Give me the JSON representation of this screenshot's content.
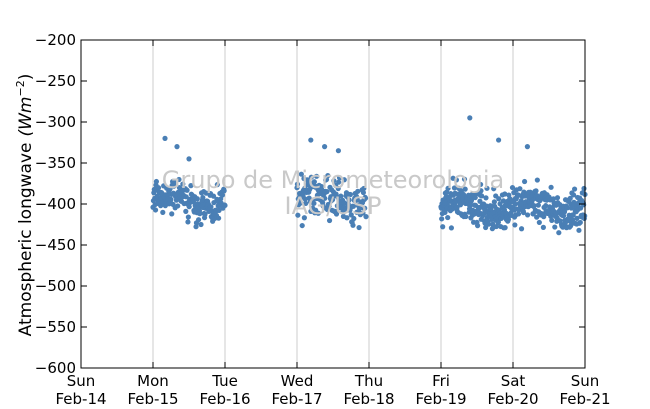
{
  "chart_data": {
    "type": "scatter",
    "ylabel": "Atmospheric longwave",
    "ylabel_unit_base": "(Wm",
    "ylabel_unit_exp": "−2",
    "ylabel_unit_close": ")",
    "ylim": [
      -600,
      -200
    ],
    "yticks": [
      -200,
      -250,
      -300,
      -350,
      -400,
      -450,
      -500,
      -550,
      -600
    ],
    "ytick_labels": [
      "−200",
      "−250",
      "−300",
      "−350",
      "−400",
      "−450",
      "−500",
      "−550",
      "−600"
    ],
    "xlim": [
      "2016-02-14",
      "2016-02-21"
    ],
    "xticks": [
      "2016-02-14",
      "2016-02-15",
      "2016-02-16",
      "2016-02-17",
      "2016-02-18",
      "2016-02-19",
      "2016-02-20",
      "2016-02-21"
    ],
    "xtick_labels": [
      [
        "Sun",
        "Feb-14"
      ],
      [
        "Mon",
        "Feb-15"
      ],
      [
        "Tue",
        "Feb-16"
      ],
      [
        "Wed",
        "Feb-17"
      ],
      [
        "Thu",
        "Feb-18"
      ],
      [
        "Fri",
        "Feb-19"
      ],
      [
        "Sat",
        "Feb-20"
      ],
      [
        "Sun",
        "Feb-21"
      ]
    ],
    "grid": "vertical",
    "marker_color": "#4a7fb5",
    "watermark": [
      "Grupo de Micrometeorologia",
      "IAG/USP"
    ],
    "segments": [
      {
        "start": "2016-02-15T00:00",
        "end": "2016-02-16T00:00",
        "n": 170,
        "center": -397,
        "spread": 15,
        "outliers": [
          -320,
          -330,
          -345,
          -425
        ]
      },
      {
        "start": "2016-02-17T00:00",
        "end": "2016-02-17T23:00",
        "n": 160,
        "center": -395,
        "spread": 17,
        "outliers": [
          -322,
          -330,
          -335
        ]
      },
      {
        "start": "2016-02-19T00:00",
        "end": "2016-02-21T00:00",
        "n": 430,
        "center": -403,
        "spread": 16,
        "outliers": [
          -295,
          -322,
          -330
        ]
      }
    ]
  }
}
